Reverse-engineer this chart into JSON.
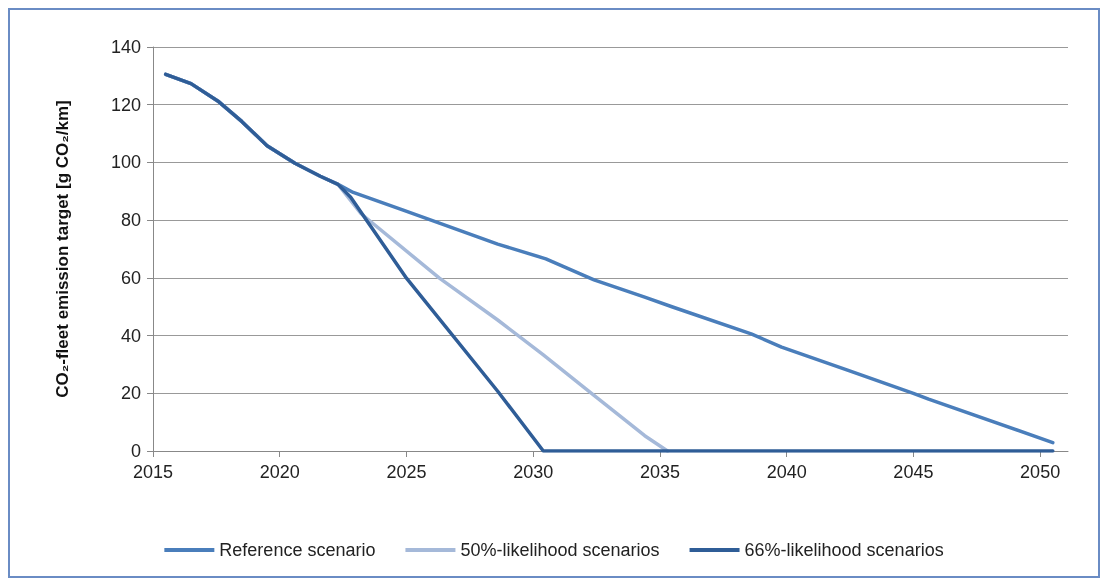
{
  "chart_data": {
    "type": "line",
    "ylabel": "CO₂-fleet emission target [g CO₂/km]",
    "xlim": [
      2015,
      2051.1
    ],
    "xticks": [
      2015,
      2020,
      2025,
      2030,
      2035,
      2040,
      2045,
      2050
    ],
    "ylim": [
      0,
      140
    ],
    "yticks": [
      0,
      20,
      40,
      60,
      80,
      100,
      120,
      140
    ],
    "grid": "y",
    "legend": "bottom",
    "marker": "none",
    "line_style": "solid",
    "series": [
      {
        "name": "Reference scenario",
        "color": "#4a7ebb",
        "x": [
          2015.5,
          2016.5,
          2017.6,
          2018.5,
          2019.5,
          2020.6,
          2021.6,
          2022.3,
          2022.9,
          2024.9,
          2026.3,
          2028.6,
          2030.5,
          2032.4,
          2034.4,
          2035.5,
          2038.6,
          2039.8,
          2042.4,
          2045,
          2045.6,
          2050.5
        ],
        "values": [
          130.5,
          127.3,
          121,
          114.2,
          105.8,
          99.7,
          95.2,
          92.4,
          89.6,
          83.4,
          79,
          71.7,
          66.6,
          59.3,
          53.3,
          49.9,
          40.6,
          36,
          28,
          20,
          18,
          2.9
        ]
      },
      {
        "name": "50%-likelihood scenarios",
        "color": "#a5b9d9",
        "x": [
          2015.5,
          2016.5,
          2017.6,
          2018.5,
          2019.5,
          2020.6,
          2021.6,
          2022.3,
          2023.2,
          2026.3,
          2028.6,
          2030.4,
          2032.3,
          2034.4,
          2035.3
        ],
        "values": [
          130.5,
          127.3,
          121,
          114.2,
          105.8,
          99.7,
          95.2,
          92.4,
          82.3,
          59.9,
          45.4,
          33.3,
          20,
          5.3,
          0
        ]
      },
      {
        "name": "66%-likelihood scenarios",
        "color": "#2f5d97",
        "x": [
          2015.5,
          2016.5,
          2017.6,
          2018.5,
          2019.5,
          2020.6,
          2021.6,
          2022.3,
          2022.8,
          2025,
          2028.6,
          2030.4,
          2050.5
        ],
        "values": [
          130.5,
          127.3,
          121,
          114.2,
          105.8,
          99.7,
          95.2,
          92.4,
          87.9,
          59.9,
          20.7,
          0,
          0
        ]
      }
    ]
  }
}
